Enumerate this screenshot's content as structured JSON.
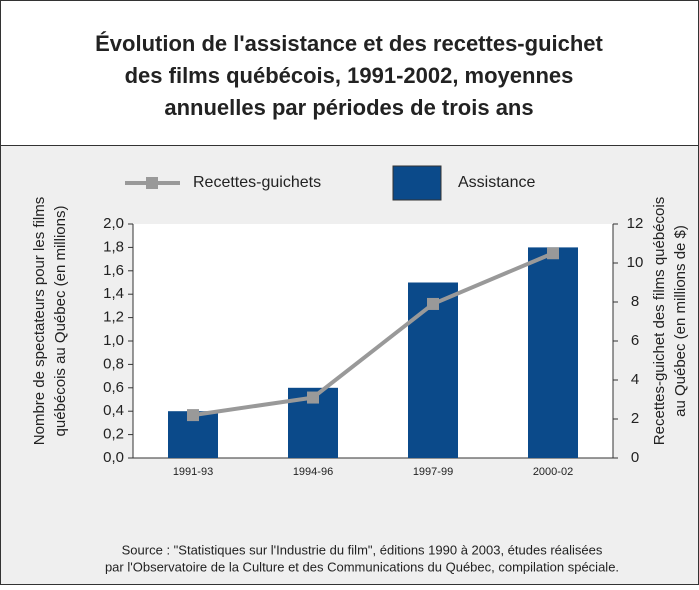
{
  "chart_data": {
    "type": "bar_line",
    "title": [
      "Évolution de l'assistance et des recettes-guichet",
      "des films québécois, 1991-2002,  moyennes",
      "annuelles par périodes de trois ans"
    ],
    "categories": [
      "1991-93",
      "1994-96",
      "1997-99",
      "2000-02"
    ],
    "series": [
      {
        "name": "Recettes-guichets",
        "color": "#999999",
        "axis": "y2",
        "kind": "line",
        "values": [
          2.2,
          3.1,
          7.9,
          10.5
        ]
      },
      {
        "name": "Assistance",
        "color": "#0b4a8a",
        "kind": "bar",
        "values": [
          0.4,
          0.6,
          1.5,
          1.8
        ]
      }
    ],
    "ylabel": [
      "Nombre de spectateurs pour les films",
      "québécois au Québec (en millions)"
    ],
    "y2label": [
      "Recettes-guichet des films québécois",
      "au Québec (en millions de $)"
    ],
    "ylim": [
      0,
      2
    ],
    "yticks": [
      {
        "value": 0,
        "label": "0,0"
      },
      {
        "value": 0.2,
        "label": "0,2"
      },
      {
        "value": 0.4,
        "label": "0,4"
      },
      {
        "value": 0.6,
        "label": "0,6"
      },
      {
        "value": 0.8,
        "label": "0,8"
      },
      {
        "value": 1.0,
        "label": "1,0"
      },
      {
        "value": 1.2,
        "label": "1,2"
      },
      {
        "value": 1.4,
        "label": "1,4"
      },
      {
        "value": 1.6,
        "label": "1,6"
      },
      {
        "value": 1.8,
        "label": "1,8"
      },
      {
        "value": 2.0,
        "label": "2,0"
      }
    ],
    "y2lim": [
      0,
      12
    ],
    "y2ticks": [
      0,
      2,
      4,
      6,
      8,
      10,
      12
    ],
    "source": [
      "Source :  \"Statistiques sur l'Industrie du film\", éditions 1990 à 2003, études réalisées",
      "par l'Observatoire de la Culture et des Communications du Québec, compilation spéciale."
    ]
  }
}
